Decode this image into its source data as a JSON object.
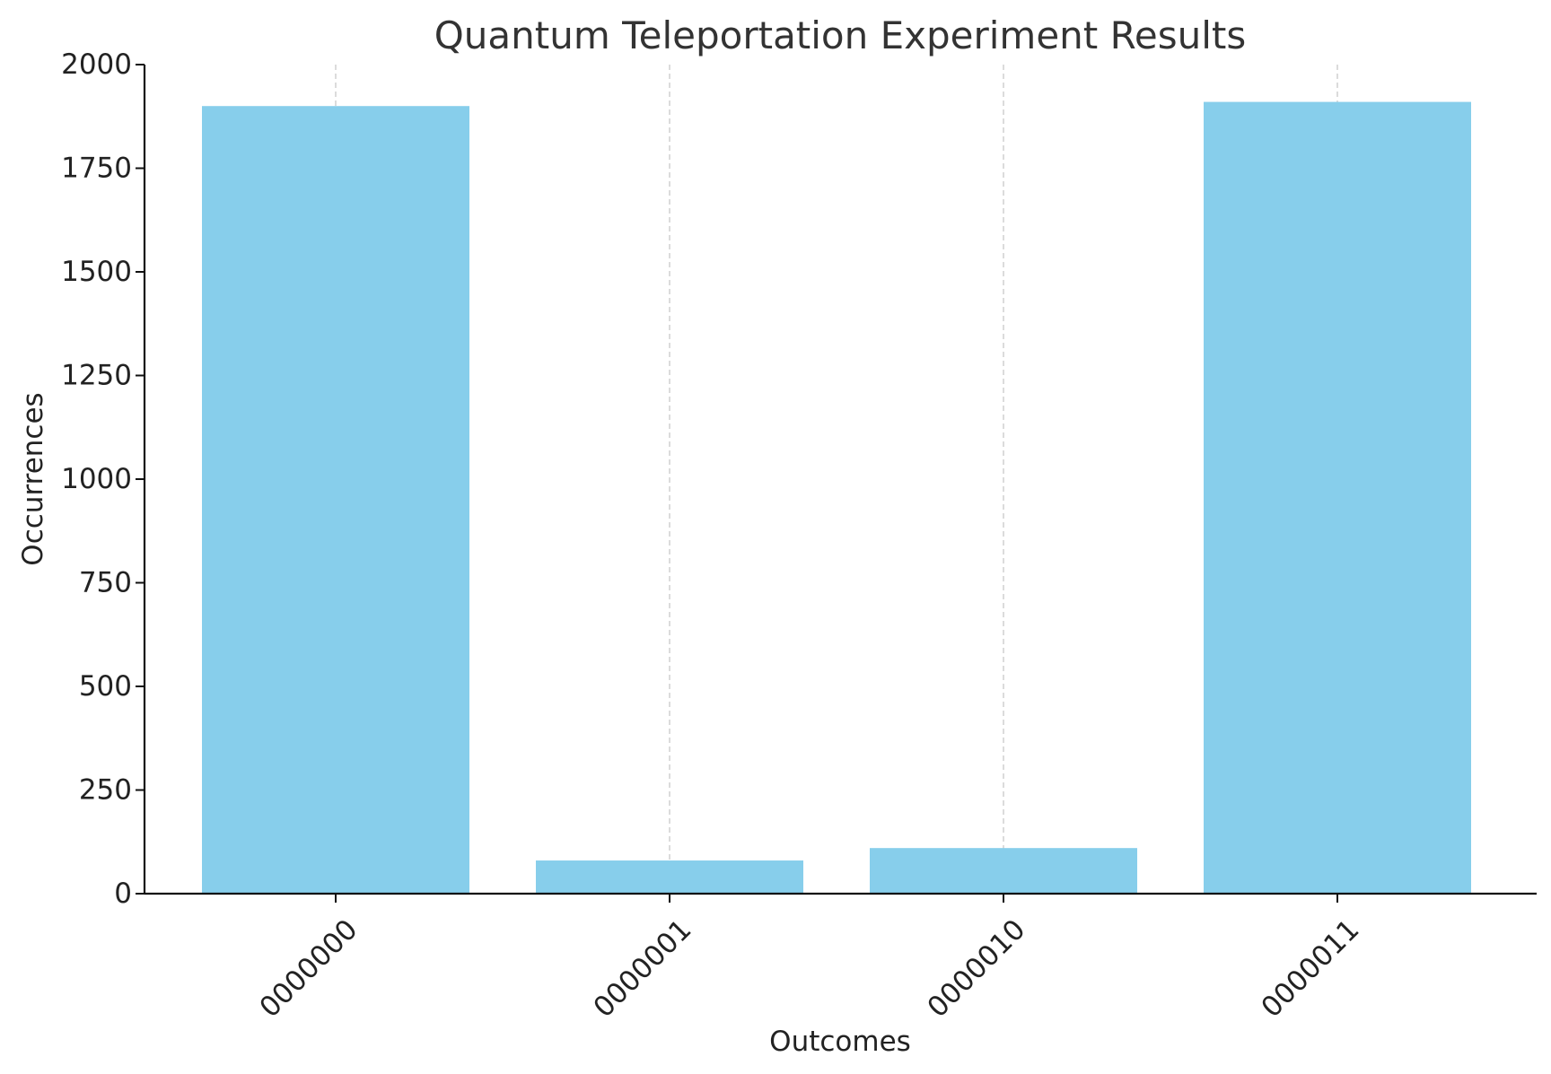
{
  "chart_data": {
    "type": "bar",
    "title": "Quantum Teleportation Experiment Results",
    "xlabel": "Outcomes",
    "ylabel": "Occurrences",
    "categories": [
      "0000000",
      "0000001",
      "0000010",
      "0000011"
    ],
    "values": [
      1900,
      80,
      110,
      1910
    ],
    "ylim": [
      0,
      2000
    ],
    "yticks": [
      0,
      250,
      500,
      750,
      1000,
      1250,
      1500,
      1750,
      2000
    ],
    "grid": "vertical dashed (x-axis only)",
    "legend": "none",
    "bar_color": "#87CEEB",
    "xtick_rotation_deg": 45
  }
}
